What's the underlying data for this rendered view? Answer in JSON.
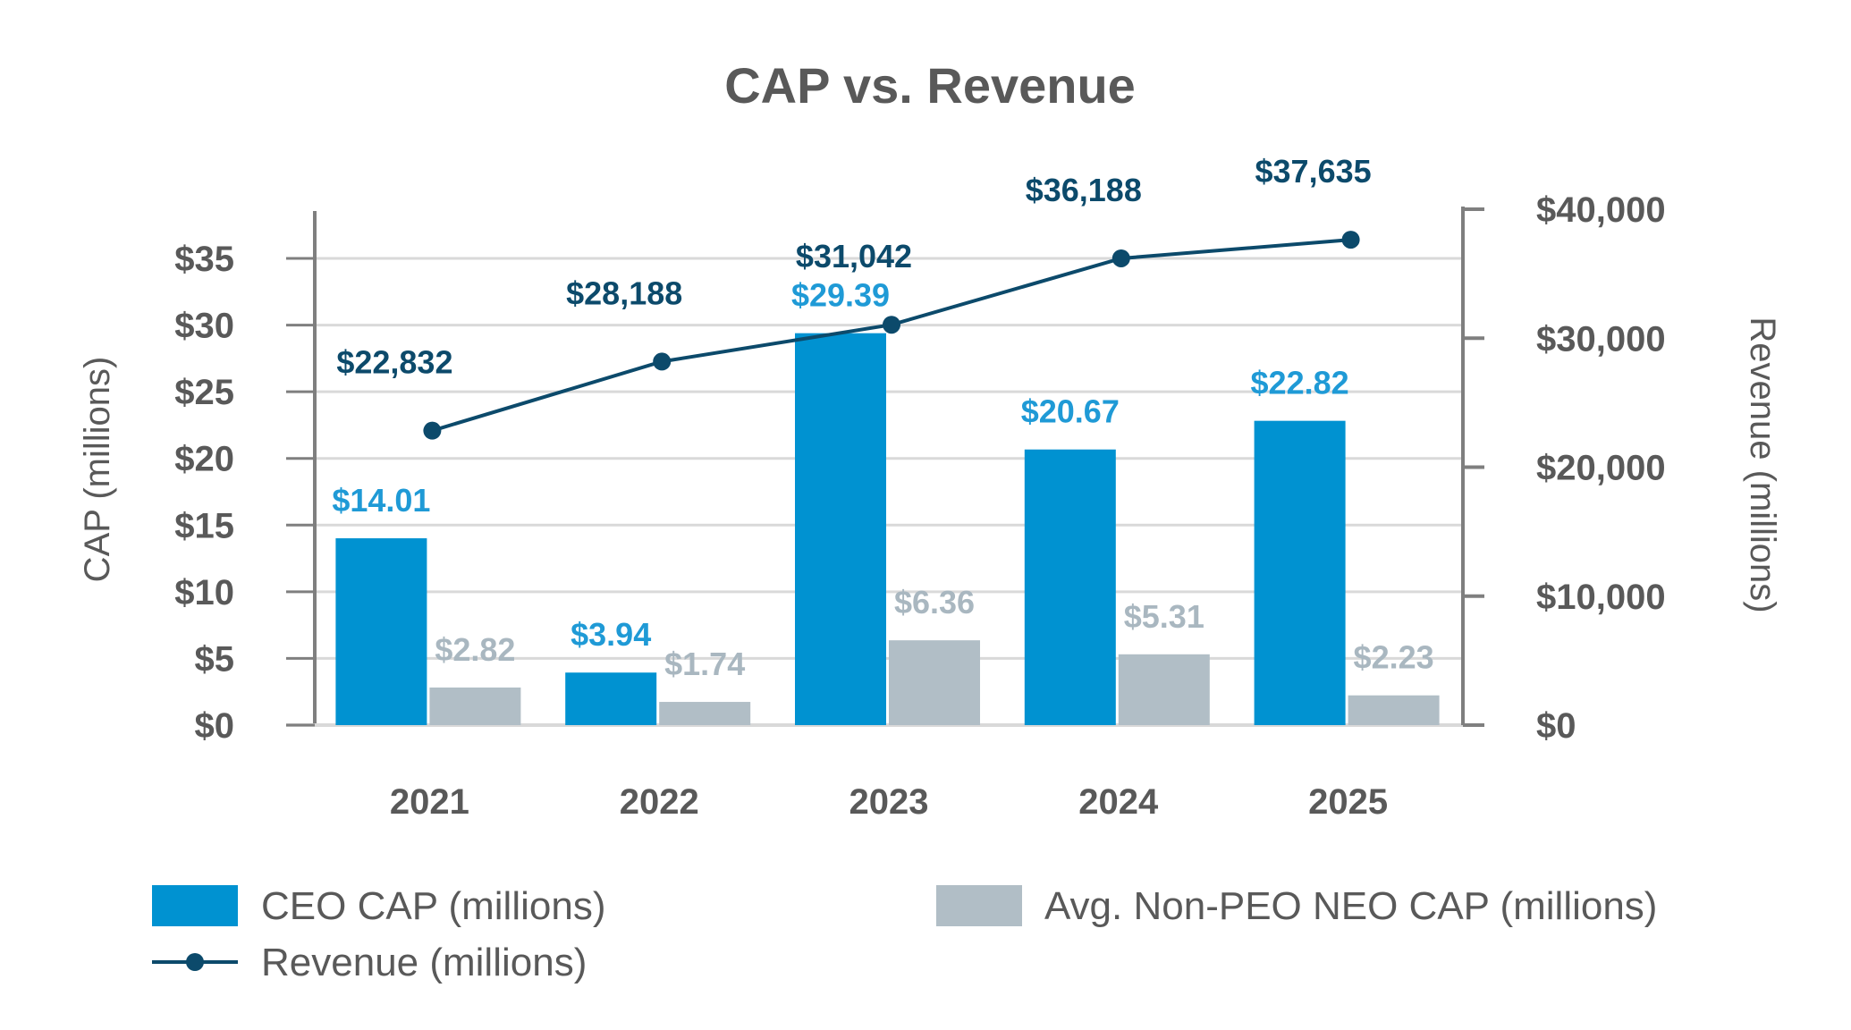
{
  "chart_data": {
    "type": "bar",
    "title": "CAP vs. Revenue",
    "categories": [
      "2021",
      "2022",
      "2023",
      "2024",
      "2025"
    ],
    "ylabel": "CAP (millions)",
    "y2label": "Revenue (millions)",
    "ylim": [
      0,
      37.5
    ],
    "y2lim": [
      0,
      40000
    ],
    "yticks": [
      0,
      5,
      10,
      15,
      20,
      25,
      30,
      35
    ],
    "ytick_labels": [
      "$0",
      "$5",
      "$10",
      "$15",
      "$20",
      "$25",
      "$30",
      "$35"
    ],
    "y2ticks": [
      0,
      10000,
      20000,
      30000,
      40000
    ],
    "y2tick_labels": [
      "$0",
      "$10,000",
      "$20,000",
      "$30,000",
      "$40,000"
    ],
    "grid": true,
    "legend_position": "bottom",
    "series": [
      {
        "name": "CEO CAP (millions)",
        "type": "bar",
        "axis": "left",
        "color": "#0092d1",
        "label_color": "#1f9ad6",
        "values": [
          14.01,
          3.94,
          29.39,
          20.67,
          22.82
        ],
        "labels": [
          "$14.01",
          "$3.94",
          "$29.39",
          "$20.67",
          "$22.82"
        ]
      },
      {
        "name": "Avg. Non-PEO NEO CAP (millions)",
        "type": "bar",
        "axis": "left",
        "color": "#b1bec6",
        "label_color": "#a9b7c0",
        "values": [
          2.82,
          1.74,
          6.36,
          5.31,
          2.23
        ],
        "labels": [
          "$2.82",
          "$1.74",
          "$6.36",
          "$5.31",
          "$2.23"
        ]
      },
      {
        "name": "Revenue (millions)",
        "type": "line",
        "axis": "right",
        "color": "#0c4a6b",
        "label_color": "#0c4a6b",
        "values": [
          22832,
          28188,
          31042,
          36188,
          37635
        ],
        "labels": [
          "$22,832",
          "$28,188",
          "$31,042",
          "$36,188",
          "$37,635"
        ]
      }
    ],
    "colors": {
      "axis": "#7f7f7f",
      "grid": "#d9d9d9",
      "text": "#595959"
    }
  }
}
